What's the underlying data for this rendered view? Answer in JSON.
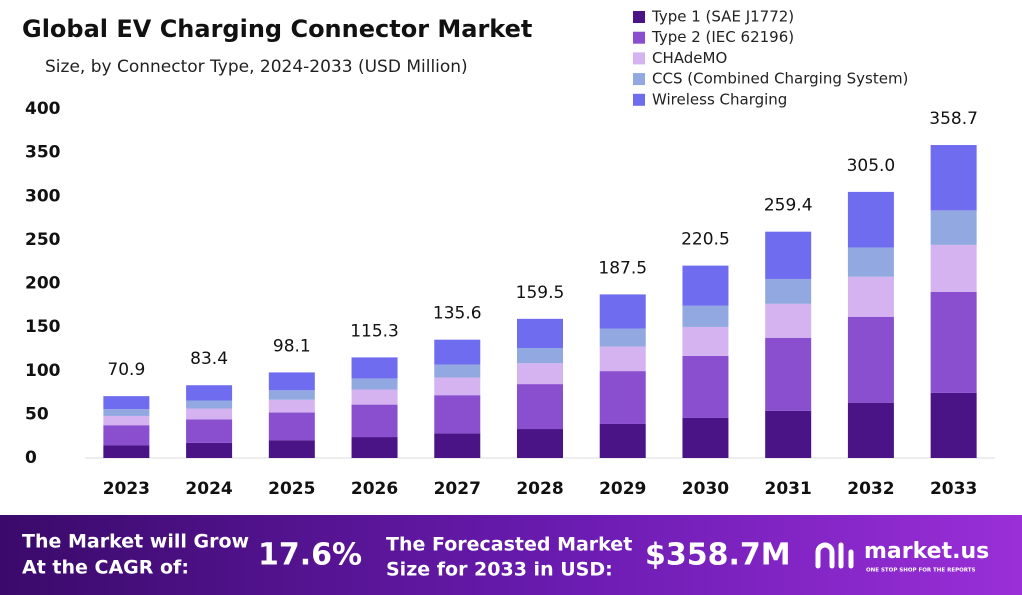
{
  "chart_data": {
    "type": "stacked-bar",
    "title": "Global EV Charging Connector Market",
    "subtitle": "Size, by Connector Type, 2024-2033 (USD Million)",
    "categories": [
      "2023",
      "2024",
      "2025",
      "2026",
      "2027",
      "2028",
      "2029",
      "2030",
      "2031",
      "2032",
      "2033"
    ],
    "series": [
      {
        "name": "Type 1 (SAE J1772)",
        "color": "#4a1486",
        "values": [
          14.7,
          17.3,
          20.4,
          24.0,
          28.2,
          33.2,
          39.0,
          45.9,
          54.0,
          63.4,
          74.6
        ]
      },
      {
        "name": "Type 2 (IEC 62196)",
        "color": "#8a4fcf",
        "values": [
          22.9,
          26.9,
          31.7,
          37.2,
          43.8,
          51.5,
          60.6,
          71.2,
          83.8,
          98.5,
          115.9
        ]
      },
      {
        "name": "CHAdeMO",
        "color": "#d4b3f0",
        "values": [
          10.6,
          12.5,
          14.7,
          17.3,
          20.3,
          23.9,
          28.1,
          33.1,
          38.9,
          45.8,
          53.8
        ]
      },
      {
        "name": "CCS (Combined Charging System)",
        "color": "#92a8e0",
        "values": [
          7.8,
          9.2,
          10.8,
          12.7,
          14.9,
          17.5,
          20.6,
          24.3,
          28.5,
          33.6,
          39.5
        ]
      },
      {
        "name": "Wireless Charging",
        "color": "#6f6cf0",
        "values": [
          14.9,
          17.5,
          20.5,
          24.1,
          28.4,
          33.4,
          39.2,
          46.0,
          54.2,
          63.7,
          74.9
        ]
      }
    ],
    "totals": [
      70.9,
      83.4,
      98.1,
      115.3,
      135.6,
      159.5,
      187.5,
      220.5,
      259.4,
      305,
      358.7
    ],
    "totals_labels": [
      "70.9",
      "83.4",
      "98.1",
      "115.3",
      "135.6",
      "159.5",
      "187.5",
      "220.5",
      "259.4",
      "305.0",
      "358.7"
    ],
    "ylim": [
      0,
      400
    ],
    "yticks": [
      0,
      50,
      100,
      150,
      200,
      250,
      300,
      350,
      400
    ],
    "legend": "top-right",
    "grid": false
  },
  "footer": {
    "cagr_line1": "The Market will Grow",
    "cagr_line2": "At the CAGR of:",
    "cagr": "17.6%",
    "forecast_line1": "The Forecasted Market",
    "forecast_line2": "Size for 2033 in USD:",
    "forecast": "$358.7M",
    "brand": "market.us",
    "tagline": "ONE STOP SHOP FOR THE REPORTS"
  }
}
